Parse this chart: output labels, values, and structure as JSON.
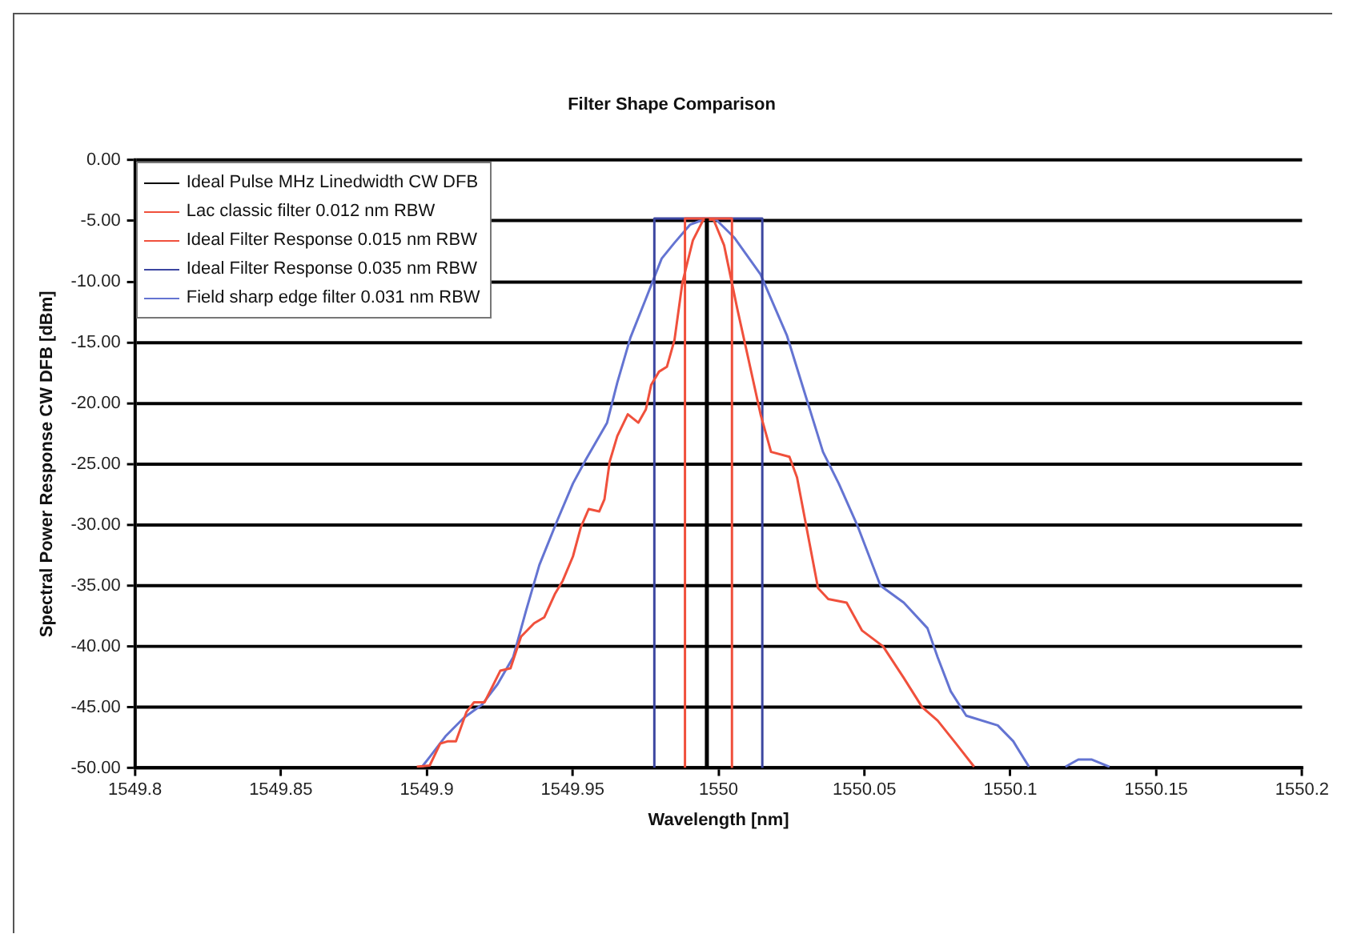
{
  "chart_data": {
    "type": "line",
    "title": "Filter Shape Comparison",
    "xlabel": "Wavelength [nm]",
    "ylabel": "Spectral Power Response CW DFB [dBm]",
    "xlim": [
      1549.8,
      1550.2
    ],
    "xticks": [
      1549.8,
      1549.85,
      1549.9,
      1549.95,
      1550,
      1550.05,
      1550.1,
      1550.15,
      1550.2
    ],
    "ylim": [
      -50,
      0
    ],
    "yticks": [
      {
        "value": 0,
        "label": "0.00"
      },
      {
        "value": -5,
        "label": "-5.00"
      },
      {
        "value": -10,
        "label": "-10.00"
      },
      {
        "value": -15,
        "label": "-15.00"
      },
      {
        "value": -20,
        "label": "-20.00"
      },
      {
        "value": -25,
        "label": "-25.00"
      },
      {
        "value": -30,
        "label": "-30.00"
      },
      {
        "value": -35,
        "label": "-35.00"
      },
      {
        "value": -40,
        "label": "-40.00"
      },
      {
        "value": -45,
        "label": "-45.00"
      },
      {
        "value": -50,
        "label": "-50.00"
      }
    ],
    "grid": "y",
    "legend": "top left",
    "marker": "none",
    "line_style": "solid",
    "series": [
      {
        "name": "Ideal Pulse MHz Linedwidth CW DFB",
        "color": "#000000",
        "x": [
          1549.996,
          1549.996
        ],
        "values": [
          -50,
          -4.8
        ]
      },
      {
        "name": "Lac classic filter 0.012 nm RBW",
        "color": "#f0503c",
        "x": [
          1549.8966,
          1549.901,
          1549.9046,
          1549.9073,
          1549.91,
          1549.9136,
          1549.9162,
          1549.9198,
          1549.9252,
          1549.9287,
          1549.9323,
          1549.9368,
          1549.9403,
          1549.9439,
          1549.9466,
          1549.9501,
          1549.9528,
          1549.9555,
          1549.9591,
          1549.9609,
          1549.9627,
          1549.9653,
          1549.9689,
          1549.9725,
          1549.9751,
          1549.9769,
          1549.9796,
          1549.9823,
          1549.9849,
          1549.9876,
          1549.9912,
          1549.9948,
          1549.9983,
          1550.0019,
          1550.0064,
          1550.01,
          1550.0144,
          1550.018,
          1550.0243,
          1550.0269,
          1550.0341,
          1550.0376,
          1550.0439,
          1550.0492,
          1550.0564,
          1550.0635,
          1550.0698,
          1550.0751,
          1550.0814,
          1550.0876
        ],
        "values": [
          -49.9,
          -49.8,
          -48,
          -47.8,
          -47.8,
          -45.4,
          -44.6,
          -44.6,
          -42,
          -41.8,
          -39.2,
          -38.1,
          -37.6,
          -35.7,
          -34.6,
          -32.6,
          -30.2,
          -28.7,
          -28.9,
          -27.9,
          -24.8,
          -22.7,
          -20.9,
          -21.6,
          -20.5,
          -18.5,
          -17.4,
          -17,
          -14.8,
          -10.1,
          -6.6,
          -4.9,
          -4.9,
          -7,
          -12.2,
          -16.1,
          -20.9,
          -24,
          -24.4,
          -26.1,
          -35.2,
          -36.1,
          -36.4,
          -38.7,
          -40,
          -42.6,
          -45,
          -46.1,
          -48,
          -49.9
        ]
      },
      {
        "name": "Ideal Filter Response 0.015 nm RBW",
        "color": "#f0503c",
        "x": [
          1549.9885,
          1549.9885,
          1550.0046,
          1550.0046
        ],
        "values": [
          -50,
          -4.8,
          -4.8,
          -50
        ]
      },
      {
        "name": "Ideal Filter Response 0.035 nm RBW",
        "color": "#3c46a0",
        "x": [
          1549.978,
          1549.978,
          1550.015,
          1550.015
        ],
        "values": [
          -50,
          -4.8,
          -4.8,
          -50
        ]
      },
      {
        "name": "Field sharp edge filter 0.031 nm RBW",
        "color": "#6474d2",
        "x": [
          1549.8984,
          1549.901,
          1549.9064,
          1549.9126,
          1549.9189,
          1549.9243,
          1549.9296,
          1549.9341,
          1549.9386,
          1549.9448,
          1549.9501,
          1549.9546,
          1549.9618,
          1549.9653,
          1549.9698,
          1549.9751,
          1549.9805,
          1549.9849,
          1549.9903,
          1549.9948,
          1549.9992,
          1550.0055,
          1550.0144,
          1550.0234,
          1550.0296,
          1550.0358,
          1550.0412,
          1550.0475,
          1550.0555,
          1550.0635,
          1550.0716,
          1550.0751,
          1550.0796,
          1550.0849,
          1550.0957,
          1550.101,
          1550.1064,
          1550.112,
          1550.1189,
          1550.1233,
          1550.1278,
          1550.134
        ],
        "values": [
          -49.9,
          -49.1,
          -47.4,
          -45.9,
          -44.8,
          -43.1,
          -40.9,
          -37,
          -33.3,
          -29.6,
          -26.6,
          -24.6,
          -21.6,
          -18.3,
          -14.6,
          -11.4,
          -8.1,
          -6.8,
          -5.3,
          -4.9,
          -4.9,
          -6.4,
          -9.4,
          -14.4,
          -19.2,
          -24,
          -26.6,
          -30,
          -35,
          -36.4,
          -38.5,
          -40.9,
          -43.7,
          -45.7,
          -46.5,
          -47.8,
          -49.9,
          null,
          -49.9,
          -49.3,
          -49.3,
          -49.9
        ]
      }
    ]
  }
}
